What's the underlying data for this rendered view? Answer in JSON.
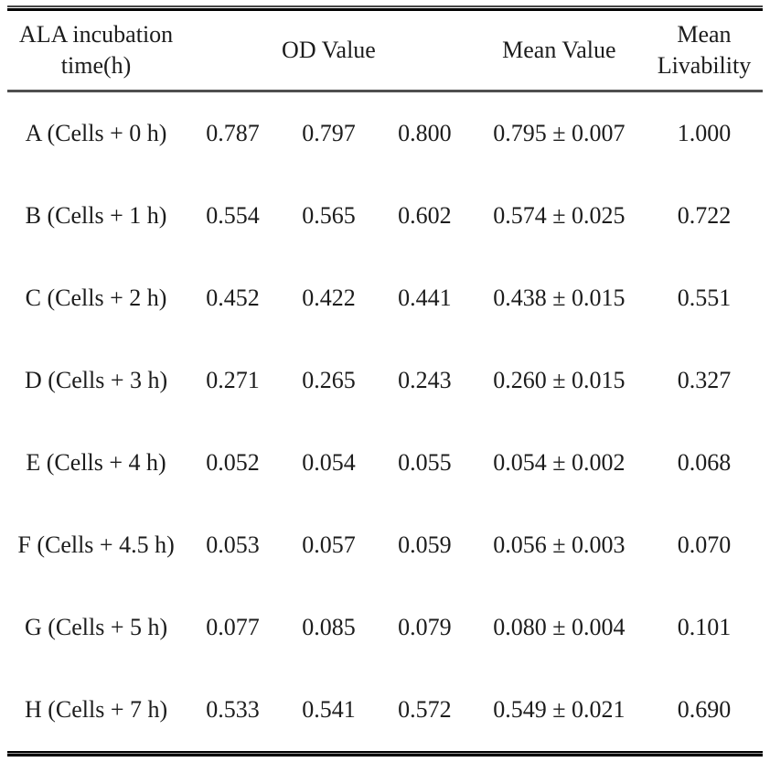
{
  "table": {
    "header": {
      "time_line1": "ALA incubation",
      "time_line2": "time(h)",
      "od": "OD Value",
      "mean": "Mean Value",
      "livability_line1": "Mean",
      "livability_line2": "Livability"
    },
    "rows": [
      {
        "label": "A (Cells + 0 h)",
        "od1": "0.787",
        "od2": "0.797",
        "od3": "0.800",
        "mean": "0.795 ± 0.007",
        "livability": "1.000"
      },
      {
        "label": "B (Cells + 1 h)",
        "od1": "0.554",
        "od2": "0.565",
        "od3": "0.602",
        "mean": "0.574 ± 0.025",
        "livability": "0.722"
      },
      {
        "label": "C (Cells + 2 h)",
        "od1": "0.452",
        "od2": "0.422",
        "od3": "0.441",
        "mean": "0.438 ± 0.015",
        "livability": "0.551"
      },
      {
        "label": "D (Cells + 3 h)",
        "od1": "0.271",
        "od2": "0.265",
        "od3": "0.243",
        "mean": "0.260 ± 0.015",
        "livability": "0.327"
      },
      {
        "label": "E (Cells + 4 h)",
        "od1": "0.052",
        "od2": "0.054",
        "od3": "0.055",
        "mean": "0.054 ± 0.002",
        "livability": "0.068"
      },
      {
        "label": "F (Cells + 4.5 h)",
        "od1": "0.053",
        "od2": "0.057",
        "od3": "0.059",
        "mean": "0.056 ± 0.003",
        "livability": "0.070"
      },
      {
        "label": "G (Cells + 5 h)",
        "od1": "0.077",
        "od2": "0.085",
        "od3": "0.079",
        "mean": "0.080 ± 0.004",
        "livability": "0.101"
      },
      {
        "label": "H (Cells + 7 h)",
        "od1": "0.533",
        "od2": "0.541",
        "od3": "0.572",
        "mean": "0.549 ± 0.021",
        "livability": "0.690"
      }
    ],
    "colors": {
      "text": "#1c1c1c",
      "rule_dark": "#000000",
      "rule_mid": "#4f4f4f",
      "background": "#ffffff"
    }
  }
}
